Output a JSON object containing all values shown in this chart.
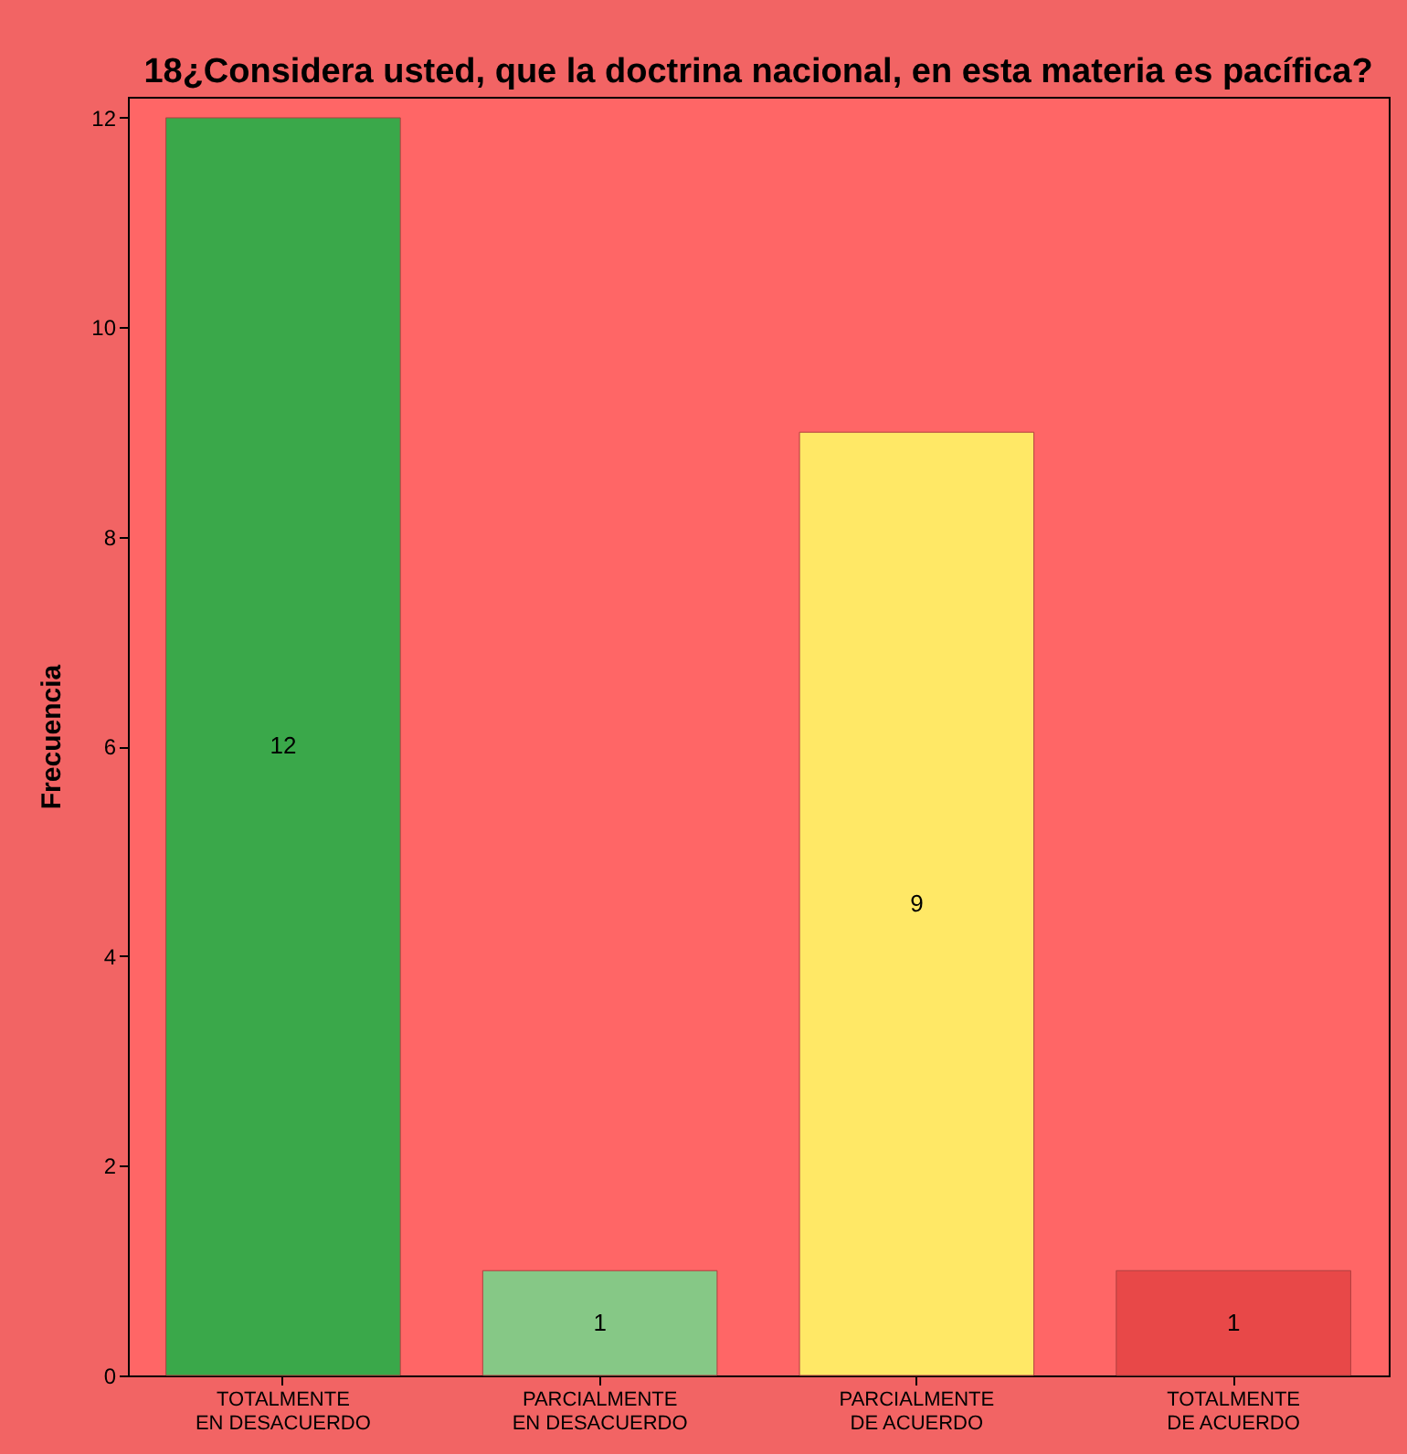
{
  "chart_data": {
    "type": "bar",
    "title": "18¿Considera usted, que la doctrina nacional, en esta materia es pacífica?",
    "ylabel": "Frecuencia",
    "categories": [
      "TOTALMENTE EN DESACUERDO",
      "PARCIALMENTE EN DESACUERDO",
      "PARCIALMENTE DE ACUERDO",
      "TOTALMENTE DE ACUERDO"
    ],
    "values": [
      12,
      1,
      9,
      1
    ],
    "colors": [
      "#3aa84a",
      "#86c886",
      "#ffe866",
      "#e84848"
    ],
    "ylim": [
      0,
      12.2
    ],
    "yticks": [
      0,
      2,
      4,
      6,
      8,
      10,
      12
    ],
    "grid": false,
    "data_labels": true
  }
}
